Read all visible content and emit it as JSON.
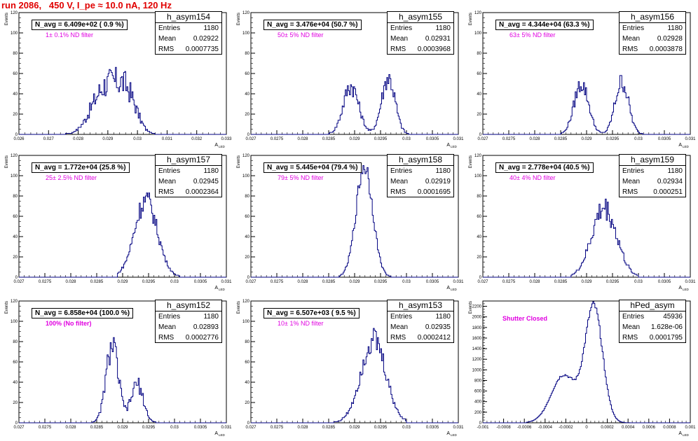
{
  "run_title": "run 2086,   450 V, I_pe ≈ 10.0 nA, 120 Hz",
  "colors": {
    "title": "#e00000",
    "histogram": "#000080",
    "nd_label": "#e000e0",
    "axis": "#000000"
  },
  "chart_data": [
    {
      "type": "bar",
      "name": "h_asym154",
      "navg": "N_avg = 6.409e+02 ( 0.9 %)",
      "nd_label": "1± 0.1% ND filter",
      "stats": {
        "entries": "1180",
        "mean": "0.02922",
        "rms": "0.0007735"
      },
      "xlim": [
        0.026,
        0.033
      ],
      "ylim": [
        0,
        120
      ],
      "xticks": [
        "0.026",
        "0.027",
        "0.028",
        "0.029",
        "0.03",
        "0.031",
        "0.032",
        "0.033"
      ],
      "yticks": [
        "0",
        "20",
        "40",
        "60",
        "80",
        "100",
        "120"
      ],
      "xlabel": "A",
      "xlabel_sub": "LED",
      "ylabel": "Events",
      "distribution": {
        "peaks": [
          [
            0.02865,
            0.00022,
            0.0
          ],
          [
            0.0287,
            0.0004,
            22
          ],
          [
            0.0292,
            0.00045,
            36
          ],
          [
            0.0297,
            0.0003,
            24
          ]
        ],
        "xmin": 0.0272,
        "xmax": 0.032,
        "noise": 0.28
      }
    },
    {
      "type": "bar",
      "name": "h_asym155",
      "navg": "N_avg = 3.476e+04 (50.7 %)",
      "nd_label": "50± 5% ND filter",
      "stats": {
        "entries": "1180",
        "mean": "0.02931",
        "rms": "0.0003968"
      },
      "xlim": [
        0.027,
        0.031
      ],
      "ylim": [
        0,
        120
      ],
      "xticks": [
        "0.027",
        "0.0275",
        "0.028",
        "0.0285",
        "0.029",
        "0.0295",
        "0.03",
        "0.0305",
        "0.031"
      ],
      "yticks": [
        "0",
        "20",
        "40",
        "60",
        "80",
        "100",
        "120"
      ],
      "xlabel": "A",
      "xlabel_sub": "LED",
      "ylabel": "Events",
      "distribution": {
        "peaks": [
          [
            0.02893,
            0.00015,
            48
          ],
          [
            0.02965,
            0.00013,
            56
          ]
        ],
        "xmin": 0.0285,
        "xmax": 0.0302,
        "noise": 0.2
      }
    },
    {
      "type": "bar",
      "name": "h_asym156",
      "navg": "N_avg = 4.344e+04 (63.3 %)",
      "nd_label": "63± 5% ND filter",
      "stats": {
        "entries": "1180",
        "mean": "0.02928",
        "rms": "0.0003878"
      },
      "xlim": [
        0.027,
        0.031
      ],
      "ylim": [
        0,
        120
      ],
      "xticks": [
        "0.027",
        "0.0275",
        "0.028",
        "0.0285",
        "0.029",
        "0.0295",
        "0.03",
        "0.0305",
        "0.031"
      ],
      "yticks": [
        "0",
        "20",
        "40",
        "60",
        "80",
        "100",
        "120"
      ],
      "xlabel": "A",
      "xlabel_sub": "LED",
      "ylabel": "Events",
      "distribution": {
        "peaks": [
          [
            0.0289,
            0.00014,
            50
          ],
          [
            0.02968,
            0.00013,
            52
          ]
        ],
        "xmin": 0.0285,
        "xmax": 0.0302,
        "noise": 0.18
      }
    },
    {
      "type": "bar",
      "name": "h_asym157",
      "navg": "N_avg = 1.772e+04 (25.8 %)",
      "nd_label": "25± 2.5% ND filter",
      "stats": {
        "entries": "1180",
        "mean": "0.02945",
        "rms": "0.0002364"
      },
      "xlim": [
        0.027,
        0.031
      ],
      "ylim": [
        0,
        120
      ],
      "xticks": [
        "0.027",
        "0.0275",
        "0.028",
        "0.0285",
        "0.029",
        "0.0295",
        "0.03",
        "0.0305",
        "0.031"
      ],
      "yticks": [
        "0",
        "20",
        "40",
        "60",
        "80",
        "100",
        "120"
      ],
      "xlabel": "A",
      "xlabel_sub": "LED",
      "ylabel": "Events",
      "distribution": {
        "peaks": [
          [
            0.02945,
            0.00022,
            76
          ]
        ],
        "xmin": 0.0289,
        "xmax": 0.0301,
        "noise": 0.15
      }
    },
    {
      "type": "bar",
      "name": "h_asym158",
      "navg": "N_avg = 5.445e+04 (79.4 %)",
      "nd_label": "79± 5% ND filter",
      "stats": {
        "entries": "1180",
        "mean": "0.02919",
        "rms": "0.0001695"
      },
      "xlim": [
        0.027,
        0.031
      ],
      "ylim": [
        0,
        120
      ],
      "xticks": [
        "0.027",
        "0.0275",
        "0.028",
        "0.0285",
        "0.029",
        "0.0295",
        "0.03",
        "0.0305",
        "0.031"
      ],
      "yticks": [
        "0",
        "20",
        "40",
        "60",
        "80",
        "100",
        "120"
      ],
      "xlabel": "A",
      "xlabel_sub": "LED",
      "ylabel": "Events",
      "distribution": {
        "peaks": [
          [
            0.02919,
            0.00016,
            110
          ]
        ],
        "xmin": 0.0287,
        "xmax": 0.0297,
        "noise": 0.1
      }
    },
    {
      "type": "bar",
      "name": "h_asym159",
      "navg": "N_avg = 2.778e+04 (40.5 %)",
      "nd_label": "40± 4% ND filter",
      "stats": {
        "entries": "1180",
        "mean": "0.02934",
        "rms": "0.000251"
      },
      "xlim": [
        0.027,
        0.031
      ],
      "ylim": [
        0,
        120
      ],
      "xticks": [
        "0.027",
        "0.0275",
        "0.028",
        "0.0285",
        "0.029",
        "0.0295",
        "0.03",
        "0.0305",
        "0.031"
      ],
      "yticks": [
        "0",
        "20",
        "40",
        "60",
        "80",
        "100",
        "120"
      ],
      "xlabel": "A",
      "xlabel_sub": "LED",
      "ylabel": "Events",
      "distribution": {
        "peaks": [
          [
            0.02934,
            0.00024,
            68
          ]
        ],
        "xmin": 0.0287,
        "xmax": 0.03,
        "noise": 0.18
      }
    },
    {
      "type": "bar",
      "name": "h_asym152",
      "navg": "N_avg = 6.858e+04 (100.0 %)",
      "nd_label": "100% (No filter)",
      "stats": {
        "entries": "1180",
        "mean": "0.02893",
        "rms": "0.0002776"
      },
      "xlim": [
        0.027,
        0.031
      ],
      "ylim": [
        0,
        120
      ],
      "xticks": [
        "0.027",
        "0.0275",
        "0.028",
        "0.0285",
        "0.029",
        "0.0295",
        "0.03",
        "0.0305",
        "0.031"
      ],
      "yticks": [
        "0",
        "20",
        "40",
        "60",
        "80",
        "100",
        "120"
      ],
      "xlabel": "A",
      "xlabel_sub": "LED",
      "ylabel": "Events",
      "distribution": {
        "peaks": [
          [
            0.0288,
            0.00012,
            76
          ],
          [
            0.02928,
            0.00012,
            38
          ]
        ],
        "xmin": 0.0284,
        "xmax": 0.0297,
        "noise": 0.2
      }
    },
    {
      "type": "bar",
      "name": "h_asym153",
      "navg": "N_avg = 6.507e+03 ( 9.5 %)",
      "nd_label": "10± 1% ND filter",
      "stats": {
        "entries": "1180",
        "mean": "0.02935",
        "rms": "0.0002412"
      },
      "xlim": [
        0.027,
        0.031
      ],
      "ylim": [
        0,
        120
      ],
      "xticks": [
        "0.027",
        "0.0275",
        "0.028",
        "0.0285",
        "0.029",
        "0.0295",
        "0.03",
        "0.0305",
        "0.031"
      ],
      "yticks": [
        "0",
        "20",
        "40",
        "60",
        "80",
        "100",
        "120"
      ],
      "xlabel": "A",
      "xlabel_sub": "LED",
      "ylabel": "Events",
      "distribution": {
        "peaks": [
          [
            0.02936,
            0.00024,
            82
          ]
        ],
        "xmin": 0.0286,
        "xmax": 0.03,
        "noise": 0.16
      }
    },
    {
      "type": "bar",
      "name": "hPed_asym",
      "navg": "",
      "nd_label": "Shutter Closed",
      "stats": {
        "entries": "45936",
        "mean": "1.628e-06",
        "rms": "0.0001795"
      },
      "xlim": [
        -0.001,
        0.001
      ],
      "ylim": [
        0,
        2300
      ],
      "xticks": [
        "-0.001",
        "-0.0008",
        "-0.0006",
        "-0.0004",
        "-0.0002",
        "0",
        "0.0002",
        "0.0004",
        "0.0006",
        "0.0008",
        "0.001"
      ],
      "yticks": [
        "0",
        "200",
        "400",
        "600",
        "800",
        "1000",
        "1200",
        "1400",
        "1600",
        "1800",
        "2000",
        "2200"
      ],
      "xlabel": "A",
      "xlabel_sub": "LED",
      "ylabel": "Events",
      "distribution": {
        "peaks": [
          [
            7e-05,
            8.5e-05,
            2180
          ],
          [
            -0.00022,
            0.00012,
            900
          ]
        ],
        "xmin": -0.00058,
        "xmax": 0.00045,
        "noise": 0.03
      }
    }
  ]
}
